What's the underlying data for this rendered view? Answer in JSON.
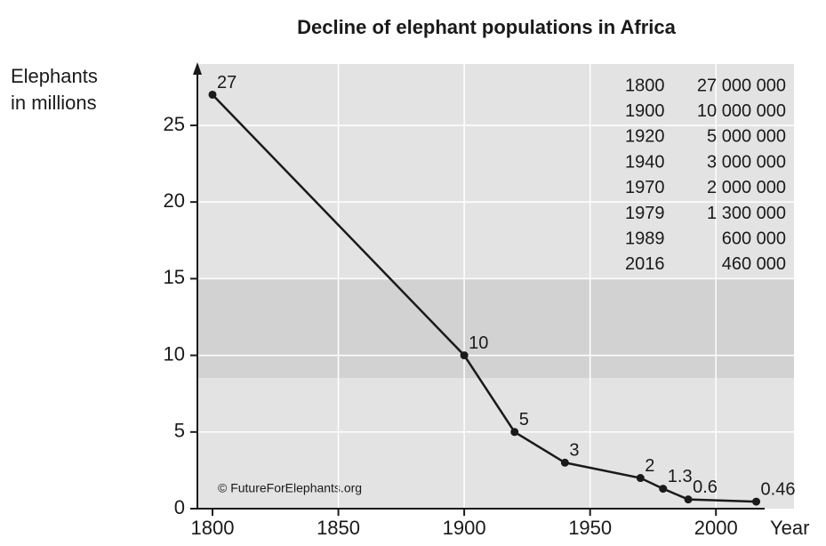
{
  "chart_data": {
    "type": "line",
    "title": "Decline of elephant populations in Africa",
    "ylabel_lines": [
      "Elephants",
      "in millions"
    ],
    "xlabel": "Year",
    "x": [
      1800,
      1900,
      1920,
      1940,
      1970,
      1979,
      1989,
      2016
    ],
    "values": [
      27,
      10,
      5,
      3,
      2,
      1.3,
      0.6,
      0.46
    ],
    "color": "#1a1a1a",
    "xlim": [
      1794,
      2031
    ],
    "ylim": [
      0,
      29
    ],
    "xticks": [
      1800,
      1850,
      1900,
      1950,
      2000
    ],
    "yticks": [
      0,
      5,
      10,
      15,
      20,
      25
    ],
    "grid": true,
    "credit": "© FutureForElephants.org",
    "table": {
      "rows": [
        [
          "1800",
          "27 000 000"
        ],
        [
          "1900",
          "10 000 000"
        ],
        [
          "1920",
          "5 000 000"
        ],
        [
          "1940",
          "3 000 000"
        ],
        [
          "1970",
          "2 000 000"
        ],
        [
          "1979",
          "1 300 000"
        ],
        [
          "1989",
          "600 000"
        ],
        [
          "2016",
          "460 000"
        ]
      ]
    }
  }
}
